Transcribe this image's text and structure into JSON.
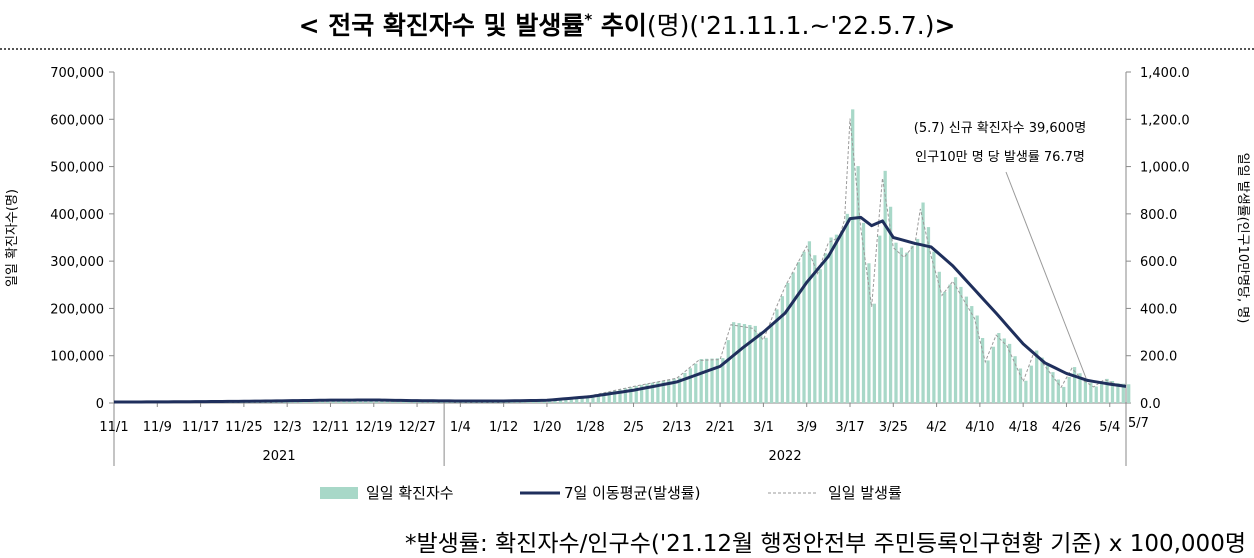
{
  "title": {
    "bold_text": "< 전국 확진자수 및 발생률",
    "sup": "*",
    "bold_text2": " 추이",
    "normal_text": "(명)('21.11.1.~'22.5.7.)",
    "close": ">"
  },
  "footnote": "*발생률: 확진자수/인구수('21.12월 행정안전부 주민등록인구현황 기준) x 100,000명",
  "chart_data": {
    "type": "bar+line",
    "ylabel_left": "일일 확진자수(명)",
    "ylabel_right": "일일 발생률(인구10만명당, 명)",
    "y_left_ticks": [
      "0",
      "100,000",
      "200,000",
      "300,000",
      "400,000",
      "500,000",
      "600,000",
      "700,000"
    ],
    "y_right_ticks": [
      "0.0",
      "200.0",
      "400.0",
      "600.0",
      "800.0",
      "1,000.0",
      "1,200.0",
      "1,400.0"
    ],
    "ylim_left": [
      0,
      700000
    ],
    "ylim_right": [
      0,
      1400
    ],
    "x_tick_labels": [
      "11/1",
      "11/9",
      "11/17",
      "11/25",
      "12/3",
      "12/11",
      "12/19",
      "12/27",
      "1/4",
      "1/12",
      "1/20",
      "1/28",
      "2/5",
      "2/13",
      "2/21",
      "3/1",
      "3/9",
      "3/17",
      "3/25",
      "4/2",
      "4/10",
      "4/18",
      "4/26",
      "5/4",
      "5/7"
    ],
    "year_labels": [
      "2021",
      "2022"
    ],
    "legend": [
      "일일 확진자수",
      "7일 이동평균(발생률)",
      "일일 발생률"
    ],
    "annotation": {
      "line1": "(5.7) 신규 확진자수 39,600명",
      "line2": "인구10만 명 당 발생률 76.7명"
    },
    "colors": {
      "bar": "#a8d8c8",
      "ma_line": "#1f2f5c",
      "daily_rate_line": "#9a9a9a"
    },
    "series": [
      {
        "name": "일일 확진자수",
        "points": [
          [
            "2021-11-01",
            1700
          ],
          [
            "2021-11-09",
            2400
          ],
          [
            "2021-11-17",
            3200
          ],
          [
            "2021-11-25",
            4000
          ],
          [
            "2021-12-03",
            5300
          ],
          [
            "2021-12-11",
            7000
          ],
          [
            "2021-12-19",
            6200
          ],
          [
            "2021-12-27",
            3900
          ],
          [
            "2022-01-04",
            4500
          ],
          [
            "2022-01-12",
            4400
          ],
          [
            "2022-01-20",
            6600
          ],
          [
            "2022-01-28",
            16000
          ],
          [
            "2022-02-05",
            36000
          ],
          [
            "2022-02-13",
            54000
          ],
          [
            "2022-02-17",
            93000
          ],
          [
            "2022-02-21",
            95000
          ],
          [
            "2022-02-23",
            171000
          ],
          [
            "2022-02-27",
            163000
          ],
          [
            "2022-03-01",
            138000
          ],
          [
            "2022-03-03",
            198000
          ],
          [
            "2022-03-05",
            254000
          ],
          [
            "2022-03-09",
            342000
          ],
          [
            "2022-03-11",
            283000
          ],
          [
            "2022-03-13",
            350000
          ],
          [
            "2022-03-15",
            362000
          ],
          [
            "2022-03-16",
            400000
          ],
          [
            "2022-03-17",
            621000
          ],
          [
            "2022-03-19",
            381000
          ],
          [
            "2022-03-21",
            210000
          ],
          [
            "2022-03-22",
            354000
          ],
          [
            "2022-03-23",
            491000
          ],
          [
            "2022-03-25",
            339000
          ],
          [
            "2022-03-27",
            318000
          ],
          [
            "2022-03-29",
            347000
          ],
          [
            "2022-03-30",
            424000
          ],
          [
            "2022-04-01",
            320000
          ],
          [
            "2022-04-03",
            235000
          ],
          [
            "2022-04-05",
            266000
          ],
          [
            "2022-04-07",
            225000
          ],
          [
            "2022-04-09",
            185000
          ],
          [
            "2022-04-11",
            90000
          ],
          [
            "2022-04-13",
            148000
          ],
          [
            "2022-04-15",
            125000
          ],
          [
            "2022-04-18",
            47000
          ],
          [
            "2022-04-20",
            111000
          ],
          [
            "2022-04-22",
            81000
          ],
          [
            "2022-04-25",
            34000
          ],
          [
            "2022-04-27",
            76000
          ],
          [
            "2022-04-29",
            50000
          ],
          [
            "2022-05-01",
            35000
          ],
          [
            "2022-05-03",
            51000
          ],
          [
            "2022-05-05",
            42000
          ],
          [
            "2022-05-07",
            39600
          ]
        ]
      },
      {
        "name": "7일 이동평균(발생률)",
        "points": [
          [
            "2021-11-01",
            4
          ],
          [
            "2021-11-09",
            4.7
          ],
          [
            "2021-11-17",
            5.8
          ],
          [
            "2021-11-25",
            7.2
          ],
          [
            "2021-12-03",
            9.5
          ],
          [
            "2021-12-11",
            12
          ],
          [
            "2021-12-19",
            12.8
          ],
          [
            "2021-12-27",
            9.8
          ],
          [
            "2022-01-04",
            8.4
          ],
          [
            "2022-01-12",
            8.5
          ],
          [
            "2022-01-20",
            11.5
          ],
          [
            "2022-01-28",
            27
          ],
          [
            "2022-02-05",
            54
          ],
          [
            "2022-02-13",
            89
          ],
          [
            "2022-02-21",
            155
          ],
          [
            "2022-02-25",
            230
          ],
          [
            "2022-03-01",
            300
          ],
          [
            "2022-03-05",
            380
          ],
          [
            "2022-03-09",
            510
          ],
          [
            "2022-03-13",
            620
          ],
          [
            "2022-03-17",
            780
          ],
          [
            "2022-03-19",
            785
          ],
          [
            "2022-03-21",
            750
          ],
          [
            "2022-03-23",
            770
          ],
          [
            "2022-03-25",
            700
          ],
          [
            "2022-03-29",
            675
          ],
          [
            "2022-04-01",
            660
          ],
          [
            "2022-04-05",
            580
          ],
          [
            "2022-04-09",
            480
          ],
          [
            "2022-04-13",
            380
          ],
          [
            "2022-04-18",
            250
          ],
          [
            "2022-04-22",
            170
          ],
          [
            "2022-04-26",
            125
          ],
          [
            "2022-04-30",
            95
          ],
          [
            "2022-05-04",
            80
          ],
          [
            "2022-05-07",
            70
          ]
        ]
      },
      {
        "name": "일일 발생률",
        "points": [
          [
            "2021-11-01",
            3.4
          ],
          [
            "2021-11-09",
            4.7
          ],
          [
            "2021-11-17",
            6.2
          ],
          [
            "2021-11-25",
            7.8
          ],
          [
            "2021-12-03",
            10.3
          ],
          [
            "2021-12-11",
            13.5
          ],
          [
            "2021-12-19",
            12
          ],
          [
            "2021-12-27",
            7.6
          ],
          [
            "2022-01-04",
            8.7
          ],
          [
            "2022-01-12",
            8.5
          ],
          [
            "2022-01-20",
            12.8
          ],
          [
            "2022-01-28",
            31
          ],
          [
            "2022-02-05",
            70
          ],
          [
            "2022-02-13",
            105
          ],
          [
            "2022-02-17",
            180
          ],
          [
            "2022-02-21",
            184
          ],
          [
            "2022-02-23",
            331
          ],
          [
            "2022-02-27",
            316
          ],
          [
            "2022-03-01",
            267
          ],
          [
            "2022-03-03",
            384
          ],
          [
            "2022-03-05",
            492
          ],
          [
            "2022-03-09",
            663
          ],
          [
            "2022-03-11",
            548
          ],
          [
            "2022-03-13",
            678
          ],
          [
            "2022-03-15",
            701
          ],
          [
            "2022-03-16",
            775
          ],
          [
            "2022-03-17",
            1203
          ],
          [
            "2022-03-19",
            738
          ],
          [
            "2022-03-21",
            407
          ],
          [
            "2022-03-22",
            686
          ],
          [
            "2022-03-23",
            951
          ],
          [
            "2022-03-25",
            657
          ],
          [
            "2022-03-27",
            616
          ],
          [
            "2022-03-29",
            672
          ],
          [
            "2022-03-30",
            821
          ],
          [
            "2022-04-01",
            620
          ],
          [
            "2022-04-03",
            455
          ],
          [
            "2022-04-05",
            515
          ],
          [
            "2022-04-07",
            436
          ],
          [
            "2022-04-09",
            358
          ],
          [
            "2022-04-11",
            174
          ],
          [
            "2022-04-13",
            287
          ],
          [
            "2022-04-15",
            242
          ],
          [
            "2022-04-18",
            91
          ],
          [
            "2022-04-20",
            215
          ],
          [
            "2022-04-22",
            157
          ],
          [
            "2022-04-25",
            66
          ],
          [
            "2022-04-27",
            147
          ],
          [
            "2022-04-29",
            97
          ],
          [
            "2022-05-01",
            68
          ],
          [
            "2022-05-03",
            99
          ],
          [
            "2022-05-05",
            81
          ],
          [
            "2022-05-07",
            76.7
          ]
        ]
      }
    ]
  }
}
